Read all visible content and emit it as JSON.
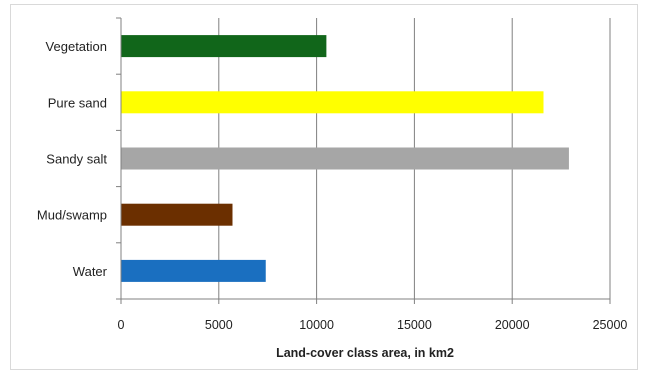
{
  "chart_data": {
    "type": "bar",
    "orientation": "horizontal",
    "title": "",
    "xlabel": "Land-cover class area, in km2",
    "ylabel": "",
    "xlim": [
      0,
      25000
    ],
    "xticks": [
      0,
      5000,
      10000,
      15000,
      20000,
      25000
    ],
    "xtick_labels": [
      "0",
      "5000",
      "10000",
      "15000",
      "20000",
      "25000"
    ],
    "grid": "vertical major gridlines",
    "legend": "none",
    "categories": [
      "Vegetation",
      "Pure sand",
      "Sandy salt",
      "Mud/swamp",
      "Water"
    ],
    "values": [
      10500,
      21600,
      22900,
      5700,
      7400
    ],
    "colors": [
      "#11661a",
      "#ffff00",
      "#a6a6a6",
      "#6b2f00",
      "#1a6fc0"
    ]
  }
}
